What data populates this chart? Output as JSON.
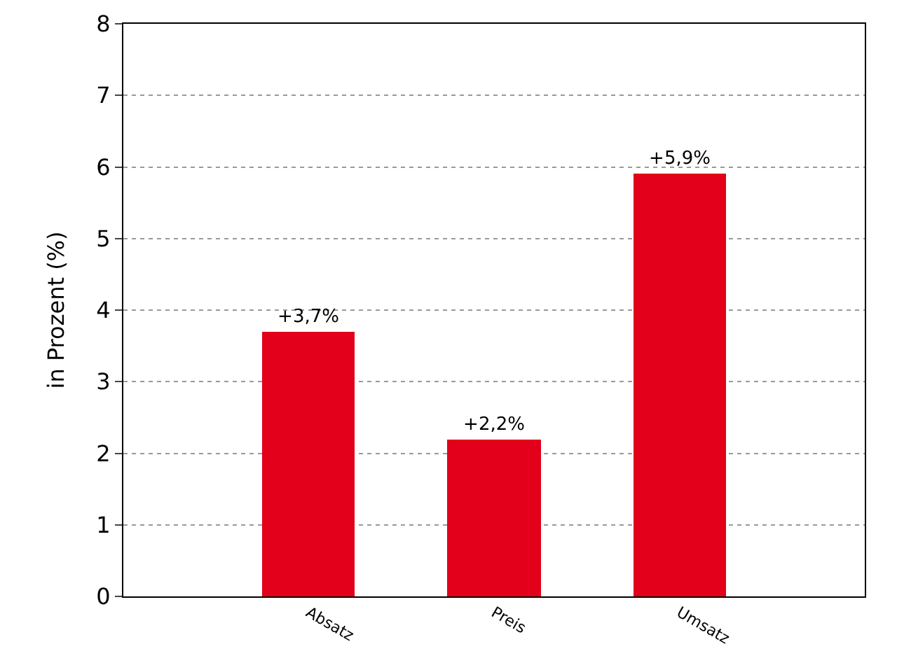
{
  "chart_data": {
    "type": "bar",
    "ylabel": "in Prozent (%)",
    "categories": [
      "Absatz",
      "Preis",
      "Umsatz"
    ],
    "values": [
      3.7,
      2.2,
      5.9
    ],
    "value_labels": [
      "+3,7%",
      "+2,2%",
      "+5,9%"
    ],
    "color": "#e2001a",
    "ylim": [
      0,
      8
    ],
    "yticks": [
      0,
      1,
      2,
      3,
      4,
      5,
      6,
      7,
      8
    ],
    "grid": "y",
    "legend": false
  }
}
